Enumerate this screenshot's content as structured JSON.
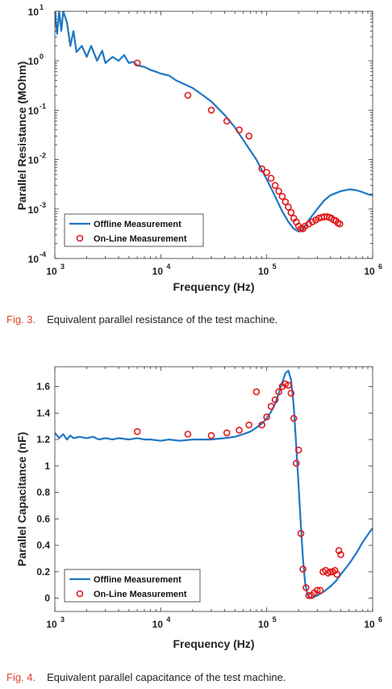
{
  "colors": {
    "offline": "#1f77c4",
    "online": "#e31a1c"
  },
  "chart_data": [
    {
      "type": "line",
      "xlabel": "Frequency (Hz)",
      "ylabel": "Parallel Resistance (MOhm)",
      "xscale": "log",
      "yscale": "log",
      "xlim": [
        1000,
        1000000
      ],
      "ylim": [
        0.0001,
        10
      ],
      "x_ticks": [
        {
          "m": "10",
          "e": "3"
        },
        {
          "m": "10",
          "e": "4"
        },
        {
          "m": "10",
          "e": "5"
        },
        {
          "m": "10",
          "e": "6"
        }
      ],
      "y_ticks": [
        {
          "m": "10",
          "e": "-4"
        },
        {
          "m": "10",
          "e": "-3"
        },
        {
          "m": "10",
          "e": "-2"
        },
        {
          "m": "10",
          "e": "-1"
        },
        {
          "m": "10",
          "e": "0"
        },
        {
          "m": "10",
          "e": "1"
        }
      ],
      "legend_position": "bottom-left",
      "series": [
        {
          "name": "Offline Measurement",
          "style": "line",
          "x": [
            1000,
            1050,
            1100,
            1150,
            1200,
            1300,
            1400,
            1500,
            1600,
            1800,
            2000,
            2200,
            2500,
            2800,
            3000,
            3500,
            4000,
            4500,
            5000,
            5500,
            6000,
            7000,
            8000,
            9000,
            10000,
            12000,
            14000,
            16000,
            20000,
            25000,
            30000,
            40000,
            50000,
            60000,
            80000,
            100000,
            120000,
            140000,
            160000,
            180000,
            200000,
            220000,
            250000,
            300000,
            350000,
            400000,
            500000,
            600000,
            700000,
            800000,
            900000,
            1000000
          ],
          "y": [
            10,
            3.5,
            10,
            4,
            10,
            6,
            2,
            4,
            1.5,
            2,
            1.2,
            2,
            1,
            1.6,
            0.9,
            1.2,
            1.0,
            1.3,
            0.9,
            0.95,
            0.8,
            0.75,
            0.65,
            0.6,
            0.55,
            0.5,
            0.4,
            0.35,
            0.28,
            0.2,
            0.15,
            0.08,
            0.045,
            0.025,
            0.01,
            0.004,
            0.0018,
            0.0009,
            0.00055,
            0.0004,
            0.00035,
            0.0004,
            0.0006,
            0.001,
            0.0015,
            0.0019,
            0.0023,
            0.0025,
            0.0024,
            0.0022,
            0.002,
            0.0019
          ]
        },
        {
          "name": "On-Line Measurement",
          "style": "markers",
          "x": [
            6000,
            18000,
            30000,
            42000,
            55000,
            68000,
            90000,
            100000,
            110000,
            120000,
            130000,
            140000,
            150000,
            160000,
            170000,
            180000,
            190000,
            200000,
            210000,
            220000,
            230000,
            250000,
            270000,
            290000,
            310000,
            330000,
            350000,
            370000,
            390000,
            410000,
            430000,
            450000,
            470000,
            490000
          ],
          "y": [
            0.9,
            0.2,
            0.1,
            0.06,
            0.04,
            0.03,
            0.0065,
            0.0055,
            0.0042,
            0.003,
            0.0023,
            0.0018,
            0.0014,
            0.0011,
            0.00085,
            0.00065,
            0.00055,
            0.00045,
            0.0004,
            0.0004,
            0.00045,
            0.0005,
            0.00055,
            0.0006,
            0.00065,
            0.00068,
            0.0007,
            0.0007,
            0.00068,
            0.00065,
            0.0006,
            0.00058,
            0.00052,
            0.0005
          ]
        }
      ]
    },
    {
      "type": "line",
      "xlabel": "Frequency (Hz)",
      "ylabel": "Parallel Capacitance (nF)",
      "xscale": "log",
      "yscale": "linear",
      "xlim": [
        1000,
        1000000
      ],
      "ylim": [
        -0.1,
        1.75
      ],
      "x_ticks": [
        {
          "m": "10",
          "e": "3"
        },
        {
          "m": "10",
          "e": "4"
        },
        {
          "m": "10",
          "e": "5"
        },
        {
          "m": "10",
          "e": "6"
        }
      ],
      "y_ticks": [
        {
          "v": 0,
          "label": "0"
        },
        {
          "v": 0.2,
          "label": "0.2"
        },
        {
          "v": 0.4,
          "label": "0.4"
        },
        {
          "v": 0.6,
          "label": "0.6"
        },
        {
          "v": 0.8,
          "label": "0.8"
        },
        {
          "v": 1.0,
          "label": "1"
        },
        {
          "v": 1.2,
          "label": "1.2"
        },
        {
          "v": 1.4,
          "label": "1.4"
        },
        {
          "v": 1.6,
          "label": "1.6"
        }
      ],
      "legend_position": "bottom-left",
      "series": [
        {
          "name": "Offline Measurement",
          "style": "line",
          "x": [
            1000,
            1100,
            1200,
            1300,
            1400,
            1500,
            1700,
            2000,
            2300,
            2600,
            3000,
            3500,
            4000,
            5000,
            6000,
            7000,
            8000,
            10000,
            12000,
            15000,
            20000,
            25000,
            30000,
            40000,
            50000,
            60000,
            70000,
            80000,
            90000,
            100000,
            110000,
            120000,
            130000,
            140000,
            150000,
            160000,
            170000,
            180000,
            190000,
            200000,
            210000,
            220000,
            230000,
            240000,
            250000,
            260000,
            280000,
            300000,
            330000,
            360000,
            400000,
            450000,
            500000,
            600000,
            700000,
            800000,
            900000,
            1000000
          ],
          "y": [
            1.25,
            1.21,
            1.24,
            1.2,
            1.23,
            1.21,
            1.22,
            1.21,
            1.22,
            1.2,
            1.21,
            1.2,
            1.21,
            1.2,
            1.21,
            1.2,
            1.2,
            1.19,
            1.2,
            1.19,
            1.2,
            1.2,
            1.2,
            1.21,
            1.22,
            1.24,
            1.26,
            1.29,
            1.32,
            1.36,
            1.41,
            1.47,
            1.55,
            1.63,
            1.7,
            1.72,
            1.65,
            1.45,
            1.15,
            0.85,
            0.55,
            0.3,
            0.12,
            0.04,
            0.01,
            0.0,
            0.01,
            0.02,
            0.04,
            0.06,
            0.09,
            0.13,
            0.18,
            0.26,
            0.34,
            0.42,
            0.48,
            0.53
          ]
        },
        {
          "name": "On-Line Measurement",
          "style": "markers",
          "x": [
            6000,
            18000,
            30000,
            42000,
            55000,
            68000,
            80000,
            90000,
            100000,
            110000,
            120000,
            130000,
            140000,
            150000,
            160000,
            170000,
            180000,
            190000,
            200000,
            210000,
            220000,
            235000,
            250000,
            265000,
            280000,
            300000,
            320000,
            340000,
            360000,
            380000,
            400000,
            420000,
            440000,
            460000,
            480000,
            500000
          ],
          "y": [
            1.26,
            1.24,
            1.23,
            1.25,
            1.27,
            1.31,
            1.56,
            1.31,
            1.37,
            1.45,
            1.5,
            1.56,
            1.6,
            1.62,
            1.61,
            1.55,
            1.36,
            1.02,
            1.12,
            0.49,
            0.22,
            0.08,
            0.02,
            0.02,
            0.04,
            0.06,
            0.06,
            0.2,
            0.21,
            0.19,
            0.2,
            0.2,
            0.21,
            0.18,
            0.36,
            0.33
          ]
        }
      ]
    }
  ],
  "captions": [
    {
      "label": "Fig. 3.",
      "text": "Equivalent parallel resistance of the test machine."
    },
    {
      "label": "Fig. 4.",
      "text": "Equivalent parallel capacitance of the test machine."
    }
  ]
}
